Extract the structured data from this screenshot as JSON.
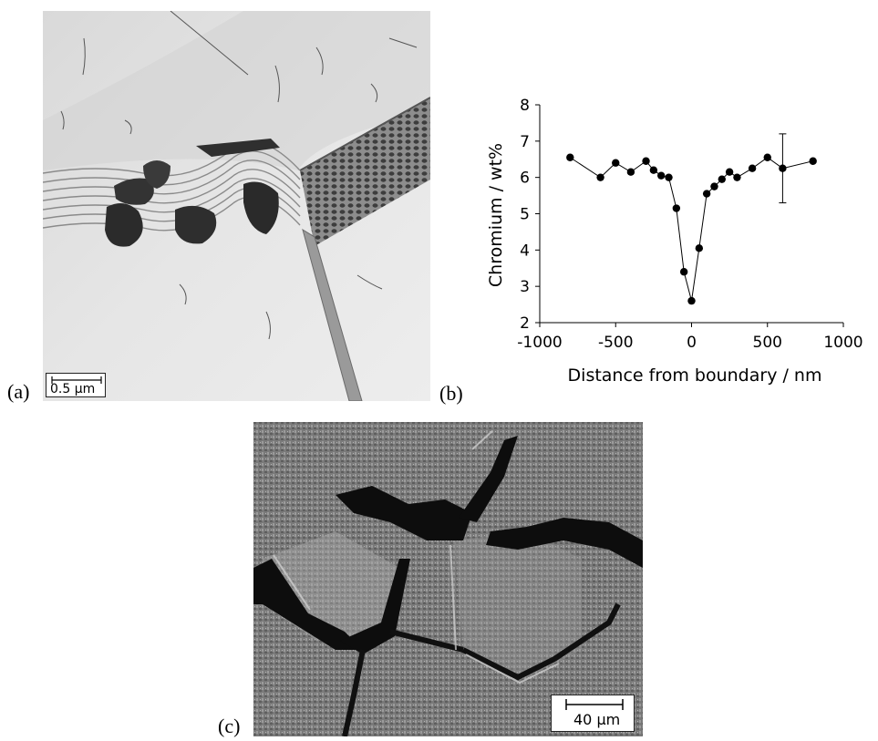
{
  "panels": {
    "a": {
      "label": "(a)",
      "scale_bar_text": "0.5 µm"
    },
    "b": {
      "label": "(b)"
    },
    "c": {
      "label": "(c)",
      "scale_bar_text": "40 µm"
    }
  },
  "chart_data": {
    "type": "scatter",
    "title": "",
    "xlabel": "Distance from boundary / nm",
    "ylabel": "Chromium / wt%",
    "xlim": [
      -1000,
      1000
    ],
    "ylim": [
      2,
      8
    ],
    "xticks": [
      -1000,
      -500,
      0,
      500,
      1000
    ],
    "xtick_labels": [
      "-1000",
      "-500",
      "0",
      "500",
      "1000"
    ],
    "yticks": [
      2,
      3,
      4,
      5,
      6,
      7,
      8
    ],
    "ytick_labels": [
      "2",
      "3",
      "4",
      "5",
      "6",
      "7",
      "8"
    ],
    "grid": false,
    "series": [
      {
        "name": "Chromium",
        "connected": true,
        "x": [
          -800,
          -600,
          -500,
          -400,
          -300,
          -250,
          -200,
          -150,
          -100,
          -50,
          0,
          50,
          100,
          150,
          200,
          250,
          300,
          400,
          500,
          600,
          800
        ],
        "y": [
          6.55,
          6.0,
          6.4,
          6.15,
          6.45,
          6.2,
          6.05,
          6.0,
          5.15,
          3.4,
          2.6,
          4.05,
          5.55,
          5.75,
          5.95,
          6.15,
          6.0,
          6.25,
          6.55,
          6.25,
          6.45
        ]
      }
    ],
    "error_bars": [
      {
        "x": 600,
        "y": 6.25,
        "low": 5.3,
        "high": 7.2
      }
    ]
  }
}
